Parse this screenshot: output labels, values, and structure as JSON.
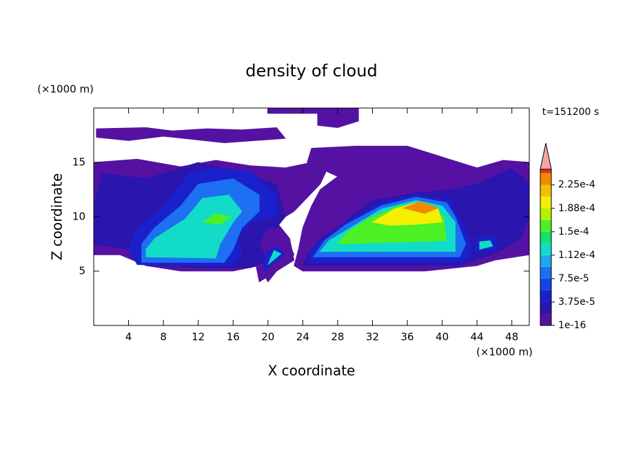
{
  "chart_data": {
    "type": "contour",
    "title": "density of cloud",
    "x_label": "X coordinate",
    "y_label": "Z coordinate",
    "x_unit": "(×1000 m)",
    "y_unit": "(×1000 m)",
    "annotation": "t=151200 s",
    "xlim": [
      0,
      50
    ],
    "ylim": [
      0,
      20
    ],
    "xticks": [
      4,
      8,
      12,
      16,
      20,
      24,
      28,
      32,
      36,
      40,
      44,
      48
    ],
    "yticks": [
      5,
      10,
      15
    ],
    "levels": [
      1e-16,
      1.875e-05,
      3.75e-05,
      5.625e-05,
      7.5e-05,
      9.375e-05,
      0.0001125,
      0.00013125,
      0.00015,
      0.00016875,
      0.0001875,
      0.00020625,
      0.000225,
      0.00024375
    ],
    "colors": [
      "#5512a2",
      "#2a16ae",
      "#1a20cc",
      "#1444e6",
      "#1e70f2",
      "#1ea8f0",
      "#12dcc8",
      "#14e070",
      "#4cf024",
      "#b4f000",
      "#f2f000",
      "#f2c000",
      "#f28a00",
      "#e43414"
    ],
    "clim": [
      0,
      0.00025
    ],
    "extend_color": "#f4a4a4",
    "cbar_ticks": [
      {
        "value": 1e-16,
        "label": "1e-16"
      },
      {
        "value": 3.75e-05,
        "label": "3.75e-5"
      },
      {
        "value": 7.5e-05,
        "label": "7.5e-5"
      },
      {
        "value": 0.0001125,
        "label": "1.12e-4"
      },
      {
        "value": 0.00015,
        "label": "1.5e-4"
      },
      {
        "value": 0.0001875,
        "label": "1.88e-4"
      },
      {
        "value": 0.000225,
        "label": "2.25e-4"
      }
    ],
    "contours": [
      {
        "level": 1e-16,
        "x": [
          0.3,
          0.3,
          6,
          9,
          13,
          17,
          21,
          22,
          15,
          8,
          4
        ],
        "z": [
          17.3,
          18.1,
          18.2,
          17.9,
          18.1,
          18,
          18.2,
          17.2,
          16.8,
          17.4,
          17
        ]
      },
      {
        "level": 1e-16,
        "x": [
          20,
          20,
          27,
          27
        ],
        "z": [
          19.5,
          20,
          20,
          19.5
        ]
      },
      {
        "level": 1e-16,
        "x": [
          25.7,
          25.7,
          30.4,
          30.4,
          28
        ],
        "z": [
          18.4,
          20,
          20,
          18.8,
          18.2
        ]
      },
      {
        "level": 1e-16,
        "x": [
          0,
          5,
          10,
          14,
          18,
          22,
          25,
          27,
          26,
          23,
          21,
          22.5,
          23,
          21,
          20,
          19,
          16,
          10,
          6,
          3,
          0
        ],
        "z": [
          15,
          15.3,
          14.6,
          15.2,
          14.7,
          14.5,
          15,
          14.7,
          13,
          10.5,
          9.5,
          8,
          6,
          5,
          4,
          5.5,
          5,
          5,
          5.5,
          6.5,
          6.5
        ]
      },
      {
        "level": 1e-16,
        "x": [
          24,
          30,
          38,
          44,
          46,
          50,
          50,
          47,
          44,
          40,
          36,
          30,
          25,
          24.5,
          28,
          26,
          25,
          24,
          23.5,
          23
        ],
        "z": [
          5,
          5,
          5,
          5.5,
          6,
          6.5,
          15,
          15.2,
          14.5,
          15.5,
          16.5,
          16.5,
          16.3,
          15,
          13.7,
          12.5,
          11,
          9,
          7,
          5.5
        ]
      },
      {
        "level": 1e-16,
        "x": [
          19,
          21,
          23,
          22.5,
          21,
          19.5,
          18.5
        ],
        "z": [
          4,
          5,
          6.5,
          7.5,
          7.8,
          7.3,
          6
        ]
      },
      {
        "level": 1.875e-05,
        "x": [
          1,
          6,
          12,
          17,
          21,
          22,
          21,
          20,
          19,
          20,
          18,
          12,
          5,
          4,
          0,
          0
        ],
        "z": [
          14,
          13.5,
          15,
          14,
          13,
          10,
          9,
          9,
          7.5,
          6,
          5.3,
          5.3,
          5.6,
          7,
          7.5,
          11
        ]
      },
      {
        "level": 1.875e-05,
        "x": [
          24,
          42,
          44,
          47,
          49,
          50,
          50,
          48,
          44,
          41,
          37,
          32,
          28,
          26,
          24.5
        ],
        "z": [
          5.5,
          5.5,
          6,
          7,
          8,
          10,
          13,
          14.5,
          13,
          12.5,
          12.2,
          11.5,
          9,
          8,
          6.5
        ]
      },
      {
        "level": 3.75e-05,
        "x": [
          24.8,
          42.5,
          43.5,
          42.5,
          41,
          37,
          33,
          29,
          26.5,
          25
        ],
        "z": [
          5.8,
          5.8,
          7,
          9,
          11.5,
          12,
          11.3,
          9.5,
          8,
          7
        ]
      },
      {
        "level": 3.75e-05,
        "x": [
          5,
          16,
          17,
          16.5,
          18,
          21,
          21,
          18,
          14,
          11,
          8,
          5,
          4
        ],
        "z": [
          5.6,
          5.5,
          6.5,
          8,
          9.5,
          10,
          12,
          14.2,
          14.5,
          14,
          11,
          9,
          7
        ]
      },
      {
        "level": 3.75e-05,
        "x": [
          19.5,
          22,
          21,
          19.8
        ],
        "z": [
          5,
          6.5,
          7.3,
          6.7
        ]
      },
      {
        "level": 3.75e-05,
        "x": [
          43.8,
          46.3,
          46,
          43.8
        ],
        "z": [
          6.7,
          7,
          8.2,
          8.1
        ]
      },
      {
        "level": 7.5e-05,
        "x": [
          25.2,
          42,
          42.7,
          41.5,
          40.5,
          37,
          33,
          29,
          26.5
        ],
        "z": [
          6.3,
          6.3,
          7.5,
          10,
          11.3,
          11.8,
          11,
          9.3,
          7.8
        ]
      },
      {
        "level": 7.5e-05,
        "x": [
          5.5,
          15,
          16,
          17,
          19,
          19,
          16,
          12,
          10,
          7,
          5.5
        ],
        "z": [
          5.8,
          5.8,
          7,
          9,
          10.5,
          12,
          13.5,
          13,
          11,
          9,
          7.5
        ]
      },
      {
        "level": 0.0001125,
        "x": [
          26,
          41.5,
          41.5,
          40,
          37,
          33,
          29.5,
          27
        ],
        "z": [
          6.8,
          6.8,
          9.5,
          11,
          11.5,
          10.7,
          9,
          7.8
        ]
      },
      {
        "level": 0.0001125,
        "x": [
          6,
          14,
          14.5,
          16,
          17,
          15.5,
          12.5,
          10.5,
          7,
          6
        ],
        "z": [
          6.3,
          6.2,
          7.5,
          9.5,
          10.5,
          12,
          11.7,
          9.8,
          8,
          7
        ]
      },
      {
        "level": 0.0001125,
        "x": [
          20,
          21.5,
          20.7
        ],
        "z": [
          5.6,
          6.6,
          6.9
        ]
      },
      {
        "level": 0.0001125,
        "x": [
          44.3,
          45.8,
          45.5,
          44.3
        ],
        "z": [
          7,
          7.3,
          7.8,
          7.7
        ]
      },
      {
        "level": 0.00015,
        "x": [
          28,
          40.5,
          40.2,
          38,
          35,
          31.5,
          29
        ],
        "z": [
          7.5,
          7.8,
          10,
          11.2,
          11,
          9.8,
          8.5
        ]
      },
      {
        "level": 0.00015,
        "x": [
          12.5,
          14,
          15.8,
          14.5
        ],
        "z": [
          9.5,
          10.3,
          10,
          9.3
        ]
      },
      {
        "level": 0.0001875,
        "x": [
          32,
          34.5,
          37,
          39.5,
          40,
          37,
          34
        ],
        "z": [
          9.5,
          10.7,
          11.3,
          10.8,
          9.5,
          9.3,
          9.2
        ]
      },
      {
        "level": 0.000225,
        "x": [
          35.5,
          37.5,
          39.5,
          38
        ],
        "z": [
          10.8,
          11.4,
          10.8,
          10.3
        ]
      }
    ]
  }
}
